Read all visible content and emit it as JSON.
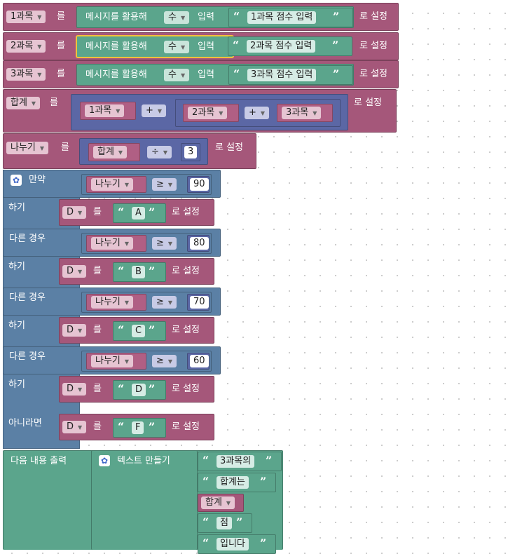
{
  "workspace": {
    "set_word": "로 설정",
    "to_word": "를",
    "rows": [
      {
        "var": "1과목",
        "prompt_label": "메시지를 활용해",
        "type": "수",
        "input_word": "입력",
        "prompt_text": "1과목 점수 입력"
      },
      {
        "var": "2과목",
        "prompt_label": "메시지를 활용해",
        "type": "수",
        "input_word": "입력",
        "prompt_text": "2과목 점수 입력"
      },
      {
        "var": "3과목",
        "prompt_label": "메시지를 활용해",
        "type": "수",
        "input_word": "입력",
        "prompt_text": "3과목 점수 입력"
      }
    ],
    "sum_block": {
      "var": "합계",
      "a": "1과목",
      "op1": "+",
      "b": "2과목",
      "op2": "+",
      "c": "3과목"
    },
    "div_block": {
      "var": "나누기",
      "a": "합계",
      "op": "÷",
      "b": "3"
    },
    "if_block": {
      "if_label": "만약",
      "do_label": "하기",
      "elseif_label": "다른 경우",
      "else_label": "아니라면",
      "conditions": [
        {
          "var": "나누기",
          "op": "≥",
          "value": "90",
          "target": "D",
          "grade": "A"
        },
        {
          "var": "나누기",
          "op": "≥",
          "value": "80",
          "target": "D",
          "grade": "B"
        },
        {
          "var": "나누기",
          "op": "≥",
          "value": "70",
          "target": "D",
          "grade": "C"
        },
        {
          "var": "나누기",
          "op": "≥",
          "value": "60",
          "target": "D",
          "grade": "D"
        }
      ],
      "else_target": "D",
      "else_grade": "F"
    },
    "print_block": {
      "label": "다음 내용 출력",
      "join_label": "텍스트 만들기",
      "items": [
        "3과목의",
        "합계는",
        "합계",
        "점",
        "입니다"
      ]
    },
    "colors": {
      "variable": "#a5577a",
      "math": "#5b67a5",
      "logic": "#5b80a5",
      "text": "#5ba58c",
      "selected_outline": "#f4c13a"
    }
  }
}
